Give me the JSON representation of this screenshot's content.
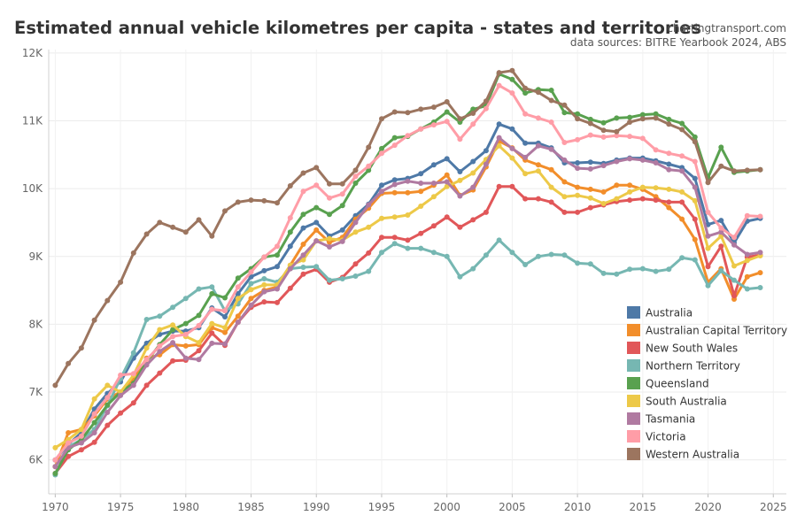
{
  "title": "Estimated annual vehicle kilometres per capita - states and territories",
  "credit": {
    "site": "chartingtransport.com",
    "sources": "data sources: BITRE Yearbook 2024, ABS"
  },
  "chart_data": {
    "type": "line",
    "title": "Estimated annual vehicle kilometres per capita - states and territories",
    "xlabel": "",
    "ylabel": "",
    "xlim": [
      1969.5,
      2026
    ],
    "ylim": [
      5500,
      12050
    ],
    "xticks": [
      1970,
      1975,
      1980,
      1985,
      1990,
      1995,
      2000,
      2005,
      2010,
      2015,
      2020,
      2025
    ],
    "yticks": [
      6000,
      7000,
      8000,
      9000,
      10000,
      11000,
      12000
    ],
    "ytick_labels": [
      "6K",
      "7K",
      "8K",
      "9K",
      "10K",
      "11K",
      "12K"
    ],
    "grid": true,
    "legend_position": "right-bottom",
    "x": [
      1970,
      1971,
      1972,
      1973,
      1974,
      1975,
      1976,
      1977,
      1978,
      1979,
      1980,
      1981,
      1982,
      1983,
      1984,
      1985,
      1986,
      1987,
      1988,
      1989,
      1990,
      1991,
      1992,
      1993,
      1994,
      1995,
      1996,
      1997,
      1998,
      1999,
      2000,
      2001,
      2002,
      2003,
      2004,
      2005,
      2006,
      2007,
      2008,
      2009,
      2010,
      2011,
      2012,
      2013,
      2014,
      2015,
      2016,
      2017,
      2018,
      2019,
      2020,
      2021,
      2022,
      2023,
      2024
    ],
    "series": [
      {
        "name": "Australia",
        "color": "#4e79a7",
        "values": [
          6000,
          6230,
          6400,
          6750,
          6980,
          7150,
          7500,
          7720,
          7850,
          7900,
          7900,
          7950,
          8240,
          8110,
          8450,
          8700,
          8790,
          8850,
          9150,
          9420,
          9500,
          9300,
          9390,
          9600,
          9770,
          10050,
          10130,
          10150,
          10220,
          10350,
          10440,
          10250,
          10400,
          10560,
          10950,
          10880,
          10670,
          10670,
          10600,
          10380,
          10380,
          10390,
          10370,
          10420,
          10450,
          10450,
          10410,
          10360,
          10310,
          10150,
          9470,
          9530,
          9200,
          9520,
          9560
        ]
      },
      {
        "name": "Australian Capital Territory",
        "color": "#f28e2b",
        "values": [
          5900,
          6400,
          6450,
          6650,
          6900,
          7000,
          7200,
          7500,
          7550,
          7700,
          7680,
          7700,
          7950,
          7880,
          8120,
          8380,
          8500,
          8550,
          8870,
          9180,
          9390,
          9210,
          9280,
          9550,
          9710,
          9930,
          9940,
          9940,
          9960,
          10050,
          10200,
          9900,
          9980,
          10320,
          10700,
          10600,
          10420,
          10350,
          10280,
          10100,
          10020,
          9990,
          9950,
          10050,
          10050,
          9990,
          9880,
          9720,
          9550,
          9250,
          8620,
          8820,
          8370,
          8700,
          8760
        ]
      },
      {
        "name": "New South Wales",
        "color": "#e15759",
        "values": [
          5800,
          6050,
          6150,
          6260,
          6510,
          6690,
          6840,
          7100,
          7280,
          7460,
          7470,
          7610,
          7870,
          7690,
          8030,
          8250,
          8330,
          8320,
          8530,
          8740,
          8810,
          8620,
          8690,
          8890,
          9050,
          9280,
          9280,
          9240,
          9340,
          9450,
          9580,
          9430,
          9540,
          9650,
          10030,
          10030,
          9850,
          9850,
          9800,
          9650,
          9650,
          9720,
          9760,
          9810,
          9830,
          9850,
          9830,
          9800,
          9800,
          9550,
          8850,
          9150,
          8420,
          8990,
          9020
        ]
      },
      {
        "name": "Northern Territory",
        "color": "#76b7b2",
        "values": [
          5780,
          6190,
          6300,
          6450,
          6800,
          7200,
          7580,
          8070,
          8120,
          8250,
          8380,
          8520,
          8550,
          8200,
          8300,
          8600,
          8670,
          8620,
          8820,
          8840,
          8850,
          8650,
          8670,
          8710,
          8780,
          9060,
          9190,
          9120,
          9120,
          9060,
          9000,
          8700,
          8820,
          9020,
          9240,
          9060,
          8880,
          9000,
          9030,
          9020,
          8900,
          8890,
          8750,
          8740,
          8810,
          8820,
          8780,
          8810,
          8980,
          8950,
          8570,
          8790,
          8650,
          8520,
          8540
        ]
      },
      {
        "name": "Queensland",
        "color": "#59a14f",
        "values": [
          5800,
          6150,
          6300,
          6550,
          6810,
          7000,
          7130,
          7450,
          7700,
          7920,
          8010,
          8130,
          8450,
          8390,
          8680,
          8820,
          8990,
          9020,
          9360,
          9620,
          9720,
          9620,
          9750,
          10080,
          10270,
          10590,
          10750,
          10770,
          10880,
          10980,
          11130,
          10980,
          11170,
          11220,
          11690,
          11610,
          11410,
          11460,
          11450,
          11120,
          11100,
          11020,
          10970,
          11040,
          11050,
          11090,
          11100,
          11020,
          10960,
          10760,
          10160,
          10610,
          10240,
          10260,
          10280
        ]
      },
      {
        "name": "South Australia",
        "color": "#edc948",
        "values": [
          6180,
          6300,
          6450,
          6900,
          7100,
          7000,
          7250,
          7650,
          7920,
          7990,
          7820,
          7730,
          8010,
          7950,
          8380,
          8510,
          8580,
          8580,
          8870,
          8950,
          9230,
          9260,
          9240,
          9360,
          9430,
          9560,
          9580,
          9610,
          9740,
          9880,
          10030,
          10120,
          10230,
          10430,
          10630,
          10450,
          10220,
          10260,
          10020,
          9880,
          9900,
          9860,
          9780,
          9850,
          9950,
          10020,
          10010,
          9990,
          9950,
          9820,
          9120,
          9300,
          8860,
          8940,
          9010
        ]
      },
      {
        "name": "Tasmania",
        "color": "#b07aa1",
        "values": [
          5900,
          6180,
          6250,
          6400,
          6700,
          6950,
          7100,
          7400,
          7600,
          7730,
          7500,
          7480,
          7720,
          7710,
          8030,
          8280,
          8480,
          8520,
          8820,
          9020,
          9230,
          9140,
          9220,
          9500,
          9760,
          9960,
          10060,
          10110,
          10080,
          10080,
          10100,
          9890,
          10020,
          10360,
          10750,
          10590,
          10460,
          10630,
          10580,
          10420,
          10300,
          10290,
          10340,
          10400,
          10440,
          10420,
          10380,
          10280,
          10260,
          10020,
          9300,
          9360,
          9170,
          9030,
          9060
        ]
      },
      {
        "name": "Victoria",
        "color": "#ff9da7",
        "values": [
          6000,
          6250,
          6350,
          6680,
          6920,
          7250,
          7270,
          7480,
          7680,
          7820,
          7850,
          7980,
          8220,
          8200,
          8550,
          8770,
          8990,
          9150,
          9570,
          9960,
          10050,
          9860,
          9920,
          10180,
          10330,
          10520,
          10640,
          10780,
          10880,
          10940,
          10990,
          10730,
          10950,
          11180,
          11520,
          11410,
          11100,
          11040,
          10980,
          10680,
          10720,
          10790,
          10760,
          10780,
          10770,
          10740,
          10570,
          10520,
          10480,
          10400,
          9650,
          9420,
          9280,
          9600,
          9590
        ]
      },
      {
        "name": "Western Australia",
        "color": "#9c755f",
        "values": [
          7100,
          7420,
          7650,
          8060,
          8350,
          8620,
          9050,
          9330,
          9500,
          9430,
          9360,
          9540,
          9300,
          9670,
          9800,
          9830,
          9820,
          9790,
          10040,
          10230,
          10310,
          10070,
          10070,
          10270,
          10610,
          11030,
          11130,
          11120,
          11170,
          11200,
          11280,
          11030,
          11110,
          11290,
          11710,
          11740,
          11480,
          11420,
          11300,
          11230,
          11030,
          10960,
          10860,
          10840,
          10980,
          11030,
          11040,
          10950,
          10870,
          10690,
          10090,
          10330,
          10260,
          10270,
          10280
        ]
      }
    ]
  }
}
